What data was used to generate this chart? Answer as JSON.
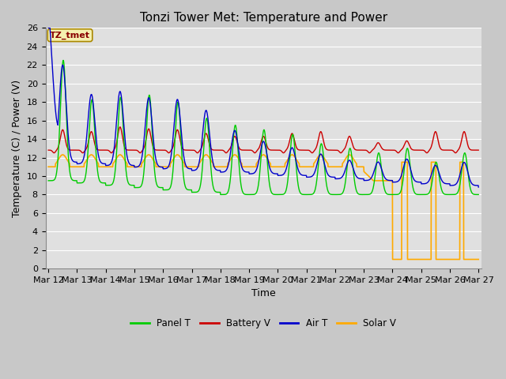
{
  "title": "Tonzi Tower Met: Temperature and Power",
  "xlabel": "Time",
  "ylabel": "Temperature (C) / Power (V)",
  "ylim": [
    0,
    26
  ],
  "yticks": [
    0,
    2,
    4,
    6,
    8,
    10,
    12,
    14,
    16,
    18,
    20,
    22,
    24,
    26
  ],
  "xtick_labels": [
    "Mar 12",
    "Mar 13",
    "Mar 14",
    "Mar 15",
    "Mar 16",
    "Mar 17",
    "Mar 18",
    "Mar 19",
    "Mar 20",
    "Mar 21",
    "Mar 22",
    "Mar 23",
    "Mar 24",
    "Mar 25",
    "Mar 26",
    "Mar 27"
  ],
  "fig_bg": "#c8c8c8",
  "plot_bg": "#e0e0e0",
  "grid_color": "#f0f0f0",
  "panel_color": "#00cc00",
  "battery_color": "#cc0000",
  "air_color": "#0000cc",
  "solar_color": "#ffaa00",
  "annotation_text": "TZ_tmet",
  "title_fontsize": 11,
  "label_fontsize": 9,
  "tick_fontsize": 8
}
